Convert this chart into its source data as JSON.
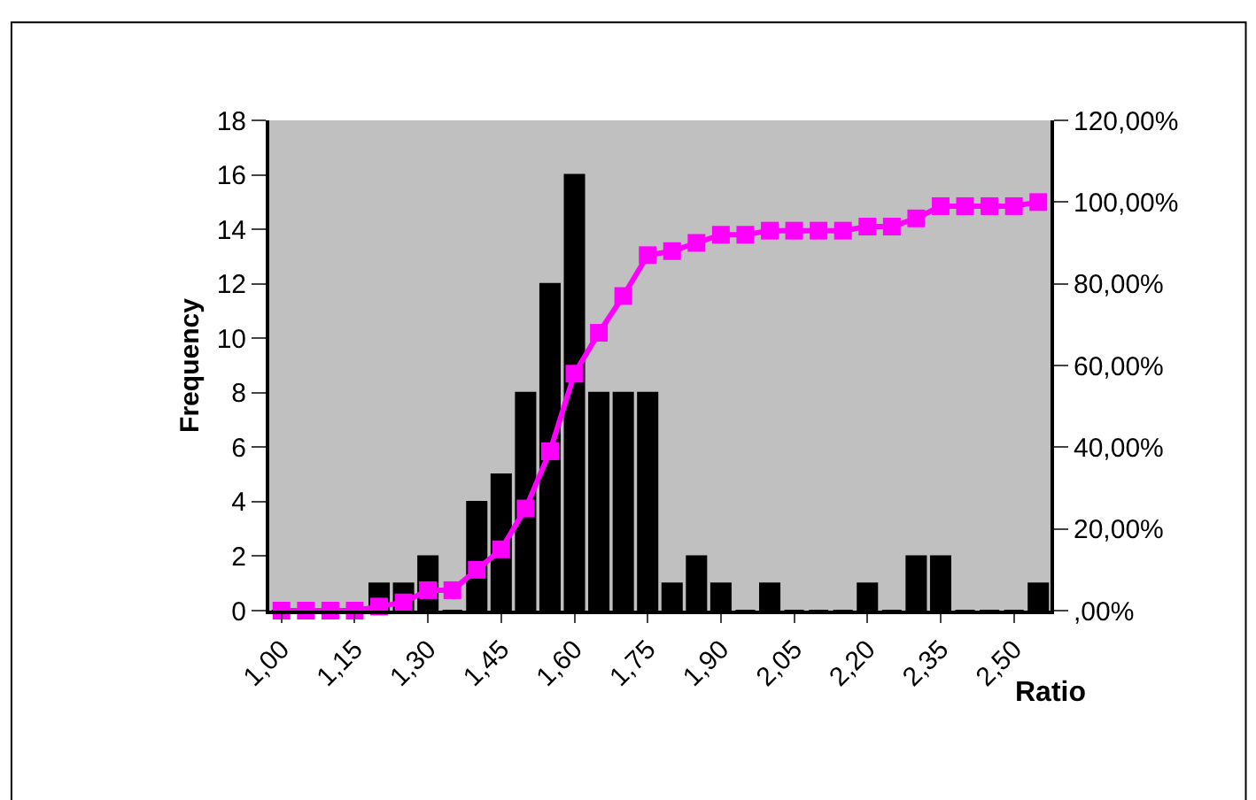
{
  "chart_data": {
    "type": "bar",
    "xlabel": "Ratio",
    "ylabel": "Frequency",
    "categories": [
      "1,00",
      null,
      null,
      "1,15",
      null,
      null,
      "1,30",
      null,
      null,
      "1,45",
      null,
      null,
      "1,60",
      null,
      null,
      "1,75",
      null,
      null,
      "1,90",
      null,
      null,
      "2,05",
      null,
      null,
      "2,20",
      null,
      null,
      "2,35",
      null,
      null,
      "2,50",
      null
    ],
    "series": [
      {
        "color": "#000000",
        "values": [
          0,
          0,
          0,
          0,
          1,
          1,
          2,
          0,
          4,
          5,
          8,
          12,
          16,
          8,
          8,
          8,
          1,
          2,
          1,
          0,
          1,
          0,
          0,
          0,
          1,
          0,
          2,
          2,
          0,
          0,
          0,
          1
        ]
      },
      {
        "type": "line",
        "axis": "y2",
        "color": "#ff00ff",
        "marker": "square",
        "values": [
          0,
          0,
          0,
          0,
          1,
          2,
          5,
          5,
          10,
          15,
          25,
          39,
          58,
          68,
          77,
          87,
          88,
          90,
          92,
          92,
          93,
          93,
          93,
          93,
          94,
          94,
          96,
          99,
          99,
          99,
          99,
          100
        ]
      }
    ],
    "ylim": [
      0,
      18
    ],
    "yticks": [
      0,
      2,
      4,
      6,
      8,
      10,
      12,
      14,
      16,
      18
    ],
    "y2lim": [
      0,
      120
    ],
    "y2ticks": [
      {
        "value": 0,
        "label": ",00%"
      },
      {
        "value": 20,
        "label": "20,00%"
      },
      {
        "value": 40,
        "label": "40,00%"
      },
      {
        "value": 60,
        "label": "60,00%"
      },
      {
        "value": 80,
        "label": "80,00%"
      },
      {
        "value": 100,
        "label": "100,00%"
      },
      {
        "value": 120,
        "label": "120,00%"
      }
    ],
    "grid": false
  }
}
